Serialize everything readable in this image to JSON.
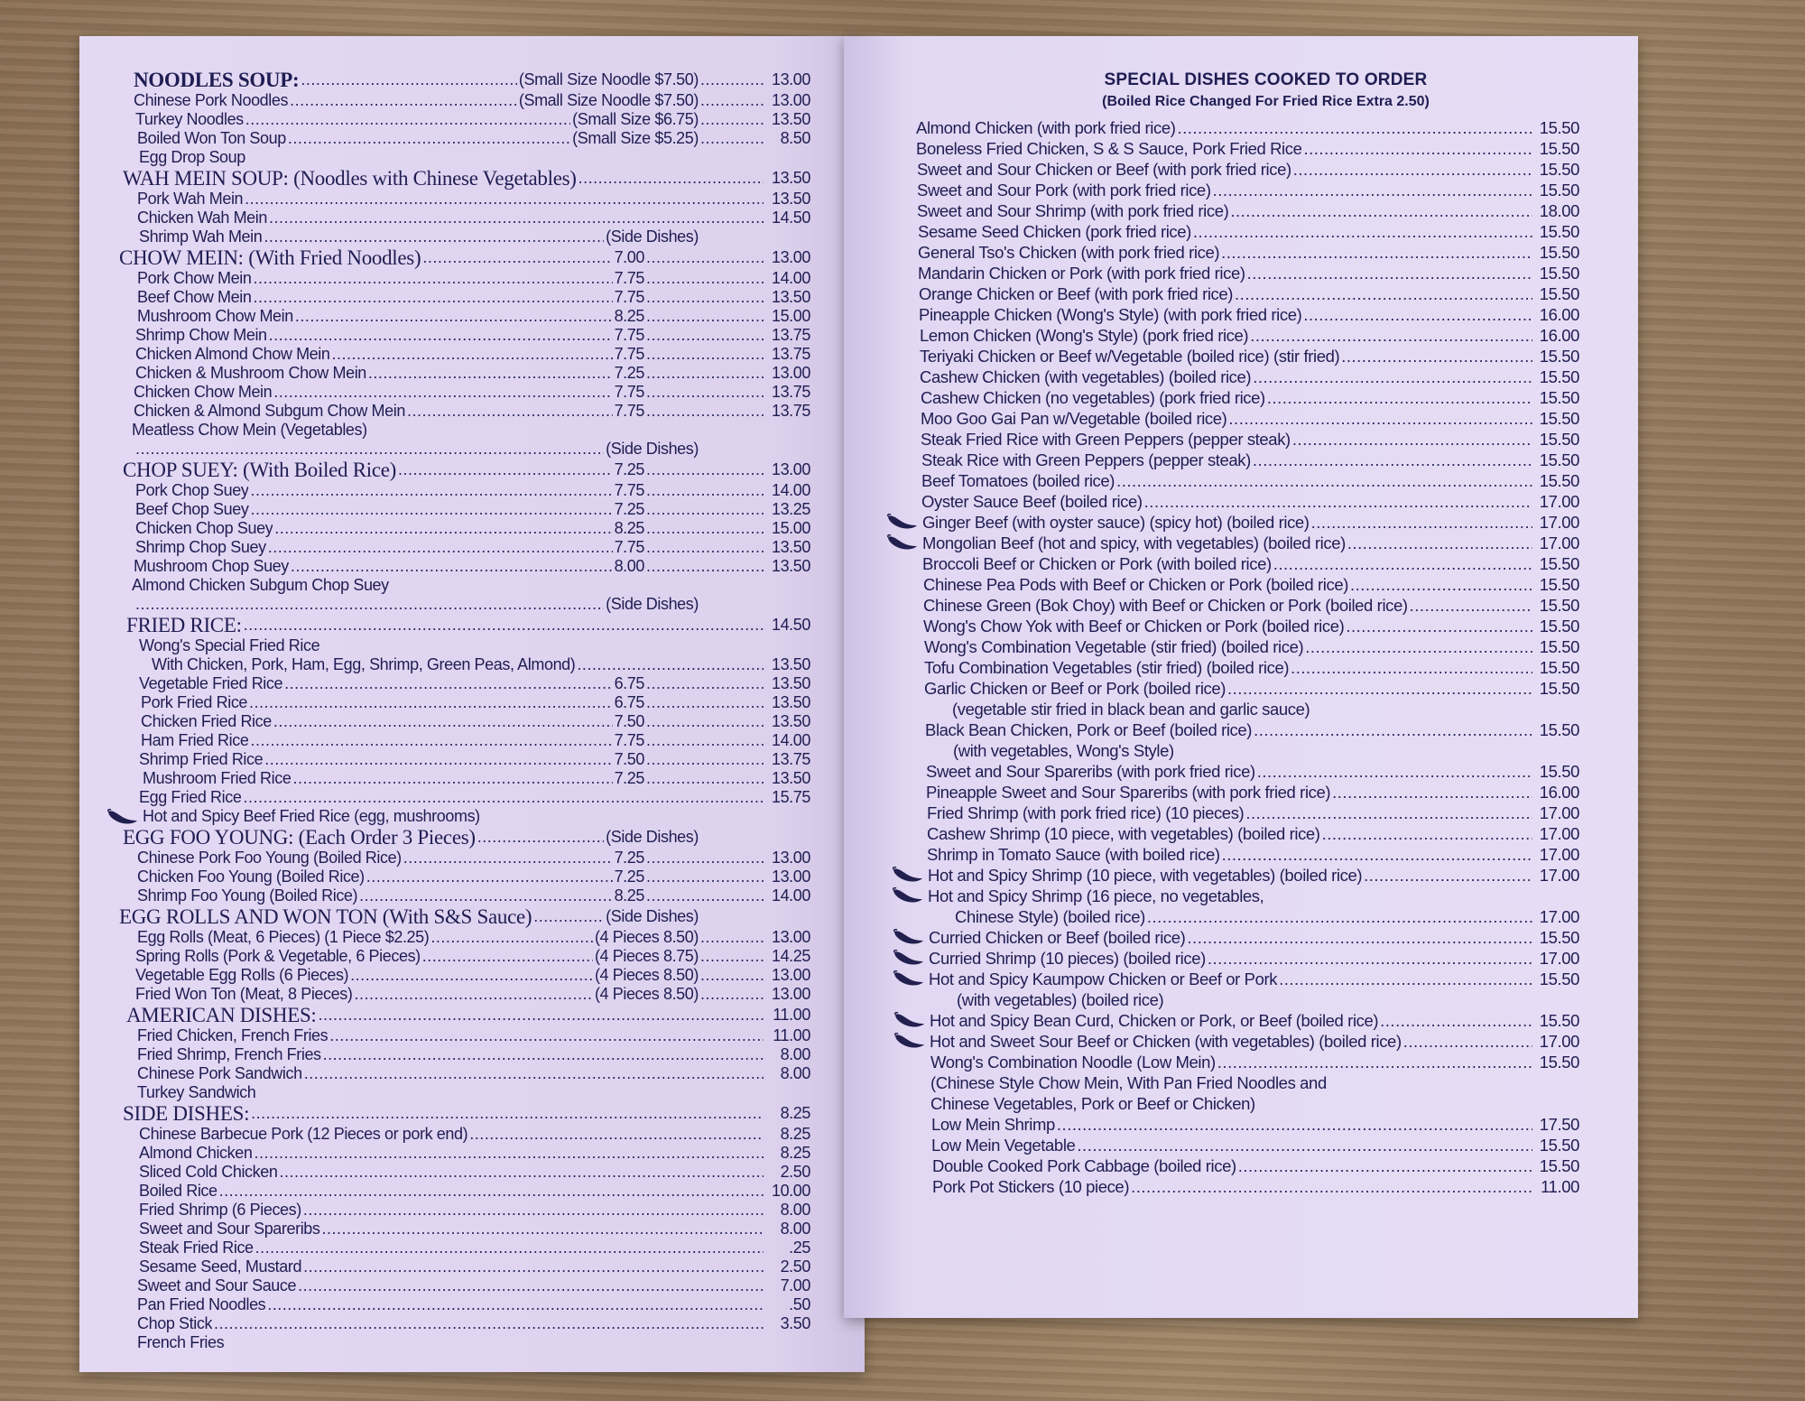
{
  "colors": {
    "paper": "#e6dcf3",
    "ink": "#1f1d52",
    "table": "#8c7358"
  },
  "left_page": {
    "rows": [
      {
        "name": "NOODLES SOUP:",
        "mid": "(Small Size Noodle $7.50)",
        "price": "13.00",
        "style": "bold-heading"
      },
      {
        "name": "Chinese Pork Noodles",
        "mid": "(Small Size Noodle $7.50)",
        "price": "13.00"
      },
      {
        "name": "Turkey Noodles",
        "mid": "(Small Size $6.75)",
        "price": "13.50"
      },
      {
        "name": "Boiled Won Ton Soup",
        "mid": "(Small Size $5.25)",
        "price": "8.50"
      },
      {
        "name": "Egg Drop Soup",
        "mid": "",
        "price": ""
      },
      {
        "name": "WAH MEIN SOUP: (Noodles with Chinese Vegetables)",
        "mid": "",
        "price": "13.50",
        "style": "heading"
      },
      {
        "name": "Pork Wah Mein",
        "mid": "",
        "price": "13.50"
      },
      {
        "name": "Chicken Wah Mein",
        "mid": "",
        "price": "14.50"
      },
      {
        "name": "Shrimp Wah Mein",
        "mid": "(Side Dishes)",
        "price": ""
      },
      {
        "name": "CHOW MEIN: (With Fried Noodles)",
        "mid": "7.00",
        "price": "13.00",
        "style": "heading"
      },
      {
        "name": "Pork Chow Mein",
        "mid": "7.75",
        "price": "14.00"
      },
      {
        "name": "Beef Chow Mein",
        "mid": "7.75",
        "price": "13.50"
      },
      {
        "name": "Mushroom Chow Mein",
        "mid": "8.25",
        "price": "15.00"
      },
      {
        "name": "Shrimp Chow Mein",
        "mid": "7.75",
        "price": "13.75"
      },
      {
        "name": "Chicken Almond Chow Mein",
        "mid": "7.75",
        "price": "13.75"
      },
      {
        "name": "Chicken & Mushroom Chow Mein",
        "mid": "7.25",
        "price": "13.00"
      },
      {
        "name": "Chicken Chow Mein",
        "mid": "7.75",
        "price": "13.75"
      },
      {
        "name": "Chicken & Almond Subgum Chow Mein",
        "mid": "7.75",
        "price": "13.75"
      },
      {
        "name": "Meatless Chow Mein (Vegetables)",
        "mid": "",
        "price": ""
      },
      {
        "name": "",
        "mid": "(Side Dishes)",
        "price": ""
      },
      {
        "name": "CHOP SUEY: (With Boiled Rice)",
        "mid": "7.25",
        "price": "13.00",
        "style": "heading"
      },
      {
        "name": "Pork Chop Suey",
        "mid": "7.75",
        "price": "14.00"
      },
      {
        "name": "Beef Chop Suey",
        "mid": "7.25",
        "price": "13.25"
      },
      {
        "name": "Chicken Chop Suey",
        "mid": "8.25",
        "price": "15.00"
      },
      {
        "name": "Shrimp Chop Suey",
        "mid": "7.75",
        "price": "13.50"
      },
      {
        "name": "Mushroom Chop Suey",
        "mid": "8.00",
        "price": "13.50"
      },
      {
        "name": "Almond Chicken Subgum Chop Suey",
        "mid": "",
        "price": ""
      },
      {
        "name": "",
        "mid": "(Side Dishes)",
        "price": ""
      },
      {
        "name": "FRIED RICE:",
        "mid": "",
        "price": "14.50",
        "style": "heading"
      },
      {
        "name": "Wong's Special Fried Rice",
        "mid": "",
        "price": ""
      },
      {
        "name": "With Chicken, Pork, Ham, Egg, Shrimp, Green Peas, Almond)",
        "mid": "",
        "price": "13.50"
      },
      {
        "name": "Vegetable Fried Rice",
        "mid": "6.75",
        "price": "13.50"
      },
      {
        "name": "Pork Fried Rice",
        "mid": "6.75",
        "price": "13.50"
      },
      {
        "name": "Chicken Fried Rice",
        "mid": "7.50",
        "price": "13.50"
      },
      {
        "name": "Ham Fried Rice",
        "mid": "7.75",
        "price": "14.00"
      },
      {
        "name": "Shrimp Fried Rice",
        "mid": "7.50",
        "price": "13.75"
      },
      {
        "name": "Mushroom Fried Rice",
        "mid": "7.25",
        "price": "13.50"
      },
      {
        "name": "Egg Fried Rice",
        "mid": "",
        "price": "15.75"
      },
      {
        "name": "Hot and Spicy Beef Fried Rice (egg, mushrooms)",
        "mid": "",
        "price": "",
        "chili": true
      },
      {
        "name": "EGG FOO YOUNG: (Each Order 3 Pieces)",
        "mid": "(Side Dishes)",
        "price": "",
        "style": "heading"
      },
      {
        "name": "Chinese Pork Foo Young (Boiled Rice)",
        "mid": "7.25",
        "price": "13.00"
      },
      {
        "name": "Chicken Foo Young (Boiled Rice)",
        "mid": "7.25",
        "price": "13.00"
      },
      {
        "name": "Shrimp Foo Young (Boiled Rice)",
        "mid": "8.25",
        "price": "14.00"
      },
      {
        "name": "EGG ROLLS AND WON TON (With S&S Sauce)",
        "mid": "(Side Dishes)",
        "price": "",
        "style": "heading"
      },
      {
        "name": "Egg Rolls (Meat, 6 Pieces) (1 Piece $2.25)",
        "mid": "(4 Pieces 8.50)",
        "price": "13.00"
      },
      {
        "name": "Spring Rolls (Pork & Vegetable, 6 Pieces)",
        "mid": "(4 Pieces 8.75)",
        "price": "14.25"
      },
      {
        "name": "Vegetable Egg Rolls (6 Pieces)",
        "mid": "(4 Pieces 8.50)",
        "price": "13.00"
      },
      {
        "name": "Fried Won Ton (Meat, 8 Pieces)",
        "mid": "(4 Pieces 8.50)",
        "price": "13.00"
      },
      {
        "name": "AMERICAN DISHES:",
        "mid": "",
        "price": "11.00",
        "style": "heading"
      },
      {
        "name": "Fried Chicken, French Fries",
        "mid": "",
        "price": "11.00"
      },
      {
        "name": "Fried Shrimp, French Fries",
        "mid": "",
        "price": "8.00"
      },
      {
        "name": "Chinese Pork Sandwich",
        "mid": "",
        "price": "8.00"
      },
      {
        "name": "Turkey Sandwich",
        "mid": "",
        "price": ""
      },
      {
        "name": "SIDE DISHES:",
        "mid": "",
        "price": "8.25",
        "style": "heading"
      },
      {
        "name": "Chinese Barbecue Pork (12 Pieces or pork end)",
        "mid": "",
        "price": "8.25"
      },
      {
        "name": "Almond Chicken",
        "mid": "",
        "price": "8.25"
      },
      {
        "name": "Sliced Cold Chicken",
        "mid": "",
        "price": "2.50"
      },
      {
        "name": "Boiled Rice",
        "mid": "",
        "price": "10.00"
      },
      {
        "name": "Fried Shrimp (6 Pieces)",
        "mid": "",
        "price": "8.00"
      },
      {
        "name": "Sweet and Sour Spareribs",
        "mid": "",
        "price": "8.00"
      },
      {
        "name": "Steak Fried Rice",
        "mid": "",
        "price": ".25"
      },
      {
        "name": "Sesame Seed, Mustard",
        "mid": "",
        "price": "2.50"
      },
      {
        "name": "Sweet and Sour Sauce",
        "mid": "",
        "price": "7.00"
      },
      {
        "name": "Pan Fried Noodles",
        "mid": "",
        "price": ".50"
      },
      {
        "name": "Chop Stick",
        "mid": "",
        "price": "3.50"
      },
      {
        "name": "French Fries",
        "mid": "",
        "price": ""
      }
    ]
  },
  "right_page": {
    "title": "SPECIAL DISHES COOKED TO ORDER",
    "subtitle": "(Boiled Rice Changed For Fried Rice Extra 2.50)",
    "rows": [
      {
        "name": "Almond Chicken (with pork fried rice)",
        "price": "15.50"
      },
      {
        "name": "Boneless Fried Chicken, S & S Sauce, Pork Fried Rice",
        "price": "15.50"
      },
      {
        "name": "Sweet and Sour Chicken or Beef (with pork fried rice)",
        "price": "15.50"
      },
      {
        "name": "Sweet and Sour Pork (with pork fried rice)",
        "price": "15.50"
      },
      {
        "name": "Sweet and Sour Shrimp (with pork fried rice)",
        "price": "18.00"
      },
      {
        "name": "Sesame Seed Chicken (pork fried rice)",
        "price": "15.50"
      },
      {
        "name": "General Tso's Chicken (with pork fried rice)",
        "price": "15.50"
      },
      {
        "name": "Mandarin Chicken or Pork (with pork fried rice)",
        "price": "15.50"
      },
      {
        "name": "Orange Chicken or Beef (with pork fried rice)",
        "price": "15.50"
      },
      {
        "name": "Pineapple Chicken (Wong's Style) (with pork fried rice)",
        "price": "16.00"
      },
      {
        "name": "Lemon Chicken (Wong's Style) (pork fried rice)",
        "price": "16.00"
      },
      {
        "name": "Teriyaki Chicken or Beef w/Vegetable (boiled rice) (stir fried)",
        "price": "15.50"
      },
      {
        "name": "Cashew Chicken (with vegetables) (boiled rice)",
        "price": "15.50"
      },
      {
        "name": "Cashew Chicken (no vegetables) (pork fried rice)",
        "price": "15.50"
      },
      {
        "name": "Moo Goo Gai Pan w/Vegetable (boiled rice)",
        "price": "15.50"
      },
      {
        "name": "Steak Fried Rice with Green Peppers (pepper steak)",
        "price": "15.50"
      },
      {
        "name": "Steak Rice with Green Peppers (pepper steak)",
        "price": "15.50"
      },
      {
        "name": "Beef Tomatoes (boiled rice)",
        "price": "15.50"
      },
      {
        "name": "Oyster Sauce Beef (boiled rice)",
        "price": "17.00"
      },
      {
        "name": "Ginger Beef (with oyster sauce) (spicy hot) (boiled rice)",
        "price": "17.00",
        "chili": true
      },
      {
        "name": "Mongolian Beef (hot and spicy, with vegetables) (boiled rice)",
        "price": "17.00",
        "chili": true
      },
      {
        "name": "Broccoli Beef or Chicken or Pork (with boiled rice)",
        "price": "15.50"
      },
      {
        "name": "Chinese Pea Pods with Beef or Chicken or Pork (boiled rice)",
        "price": "15.50"
      },
      {
        "name": "Chinese Green (Bok Choy) with Beef or Chicken or Pork (boiled rice)",
        "price": "15.50"
      },
      {
        "name": "Wong's Chow Yok with Beef or Chicken or Pork (boiled rice)",
        "price": "15.50"
      },
      {
        "name": "Wong's Combination Vegetable (stir fried) (boiled rice)",
        "price": "15.50"
      },
      {
        "name": "Tofu Combination Vegetables (stir fried) (boiled rice)",
        "price": "15.50"
      },
      {
        "name": "Garlic Chicken or Beef or Pork (boiled rice)",
        "price": "15.50"
      },
      {
        "name": "(vegetable stir fried in black bean and garlic sauce)",
        "price": "",
        "sub": true
      },
      {
        "name": "Black Bean Chicken, Pork or Beef (boiled rice)",
        "price": "15.50"
      },
      {
        "name": "(with vegetables, Wong's Style)",
        "price": "",
        "sub": true
      },
      {
        "name": "Sweet and Sour Spareribs (with pork fried rice)",
        "price": "15.50"
      },
      {
        "name": "Pineapple Sweet and Sour Spareribs (with pork fried rice)",
        "price": "16.00"
      },
      {
        "name": "Fried Shrimp (with pork fried rice) (10 pieces)",
        "price": "17.00"
      },
      {
        "name": "Cashew Shrimp (10 piece, with vegetables) (boiled rice)",
        "price": "17.00"
      },
      {
        "name": "Shrimp in Tomato Sauce (with boiled rice)",
        "price": "17.00"
      },
      {
        "name": "Hot and Spicy Shrimp (10 piece, with vegetables) (boiled rice)",
        "price": "17.00",
        "chili": true
      },
      {
        "name": "Hot and Spicy Shrimp (16 piece, no vegetables,",
        "price": "",
        "chili": true
      },
      {
        "name": "Chinese Style) (boiled rice)",
        "price": "17.00",
        "sub": true
      },
      {
        "name": "Curried Chicken or Beef (boiled rice)",
        "price": "15.50",
        "chili": true
      },
      {
        "name": "Curried Shrimp (10 pieces) (boiled rice)",
        "price": "17.00",
        "chili": true
      },
      {
        "name": "Hot and Spicy Kaumpow Chicken or Beef or Pork",
        "price": "15.50",
        "chili": true
      },
      {
        "name": "(with vegetables) (boiled rice)",
        "price": "",
        "sub": true
      },
      {
        "name": "Hot and Spicy Bean Curd, Chicken or Pork, or Beef (boiled rice)",
        "price": "15.50",
        "chili": true
      },
      {
        "name": "Hot and Sweet Sour Beef or Chicken (with vegetables) (boiled rice)",
        "price": "17.00",
        "chili": true
      },
      {
        "name": "Wong's Combination Noodle (Low Mein)",
        "price": "15.50"
      },
      {
        "name": "(Chinese Style Chow Mein, With Pan Fried Noodles and",
        "price": ""
      },
      {
        "name": "Chinese Vegetables, Pork or Beef or Chicken)",
        "price": ""
      },
      {
        "name": "Low Mein Shrimp",
        "price": "17.50"
      },
      {
        "name": "Low Mein Vegetable",
        "price": "15.50"
      },
      {
        "name": "Double Cooked Pork Cabbage (boiled rice)",
        "price": "15.50"
      },
      {
        "name": "Pork Pot Stickers (10 piece)",
        "price": "11.00"
      }
    ]
  }
}
